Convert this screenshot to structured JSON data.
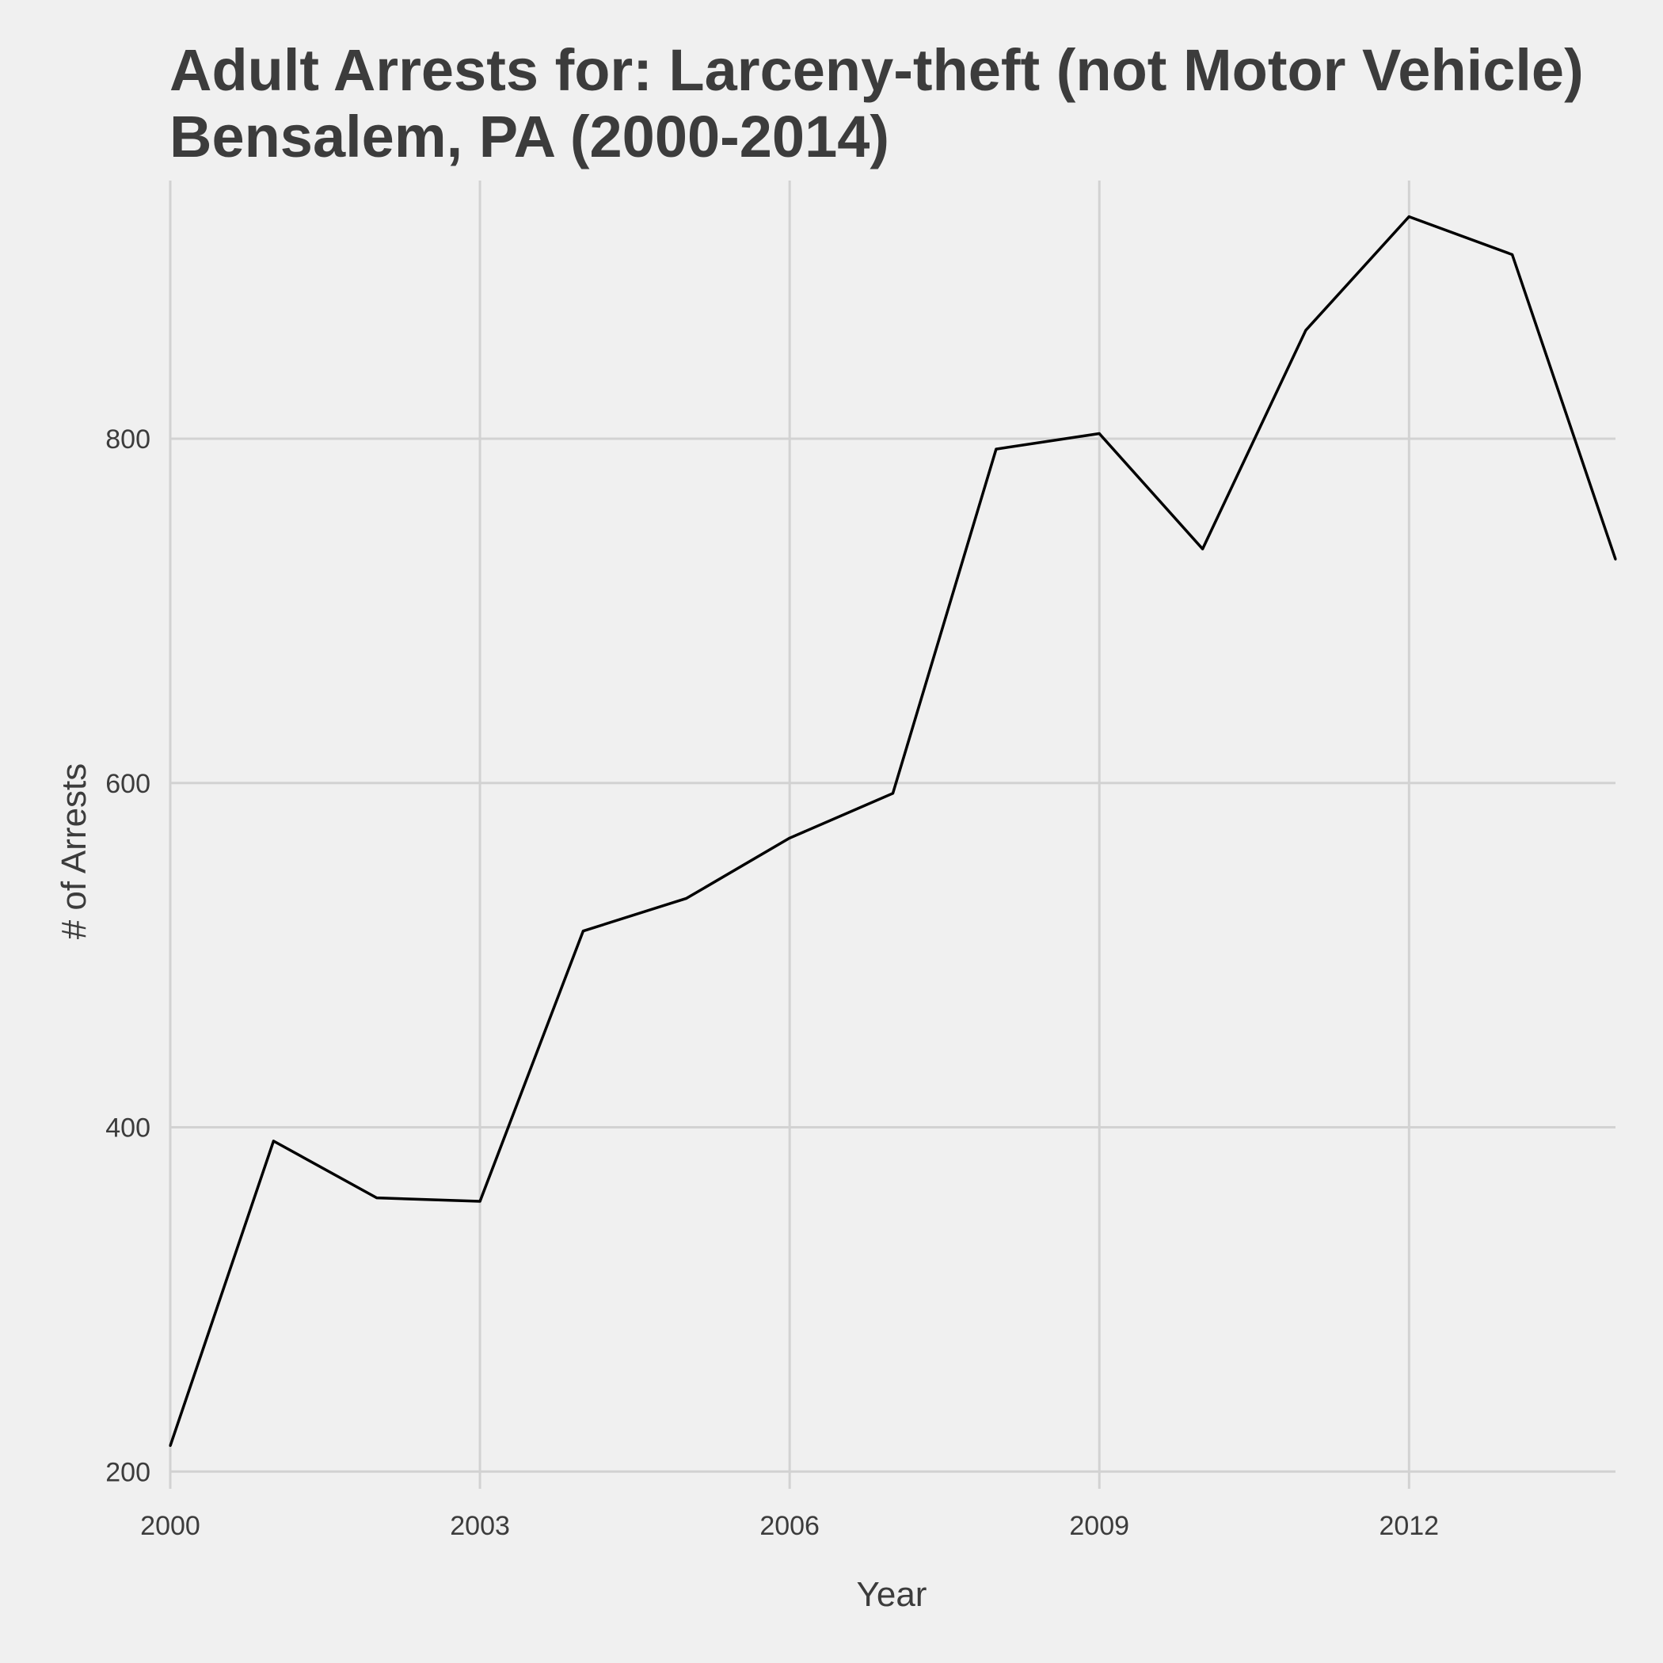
{
  "chart_data": {
    "type": "line",
    "title": "Adult Arrests for: Larceny-theft (not Motor Vehicle)",
    "subtitle": "Bensalem, PA (2000-2014)",
    "xlabel": "Year",
    "ylabel": "# of Arrests",
    "xlim": [
      2000,
      2014
    ],
    "ylim": [
      190,
      950
    ],
    "x_ticks": [
      2000,
      2003,
      2006,
      2009,
      2012
    ],
    "x_tick_labels": [
      "2000",
      "2003",
      "2006",
      "2009",
      "2012"
    ],
    "y_ticks": [
      200,
      400,
      600,
      800
    ],
    "y_tick_labels": [
      "200",
      "400",
      "600",
      "800"
    ],
    "grid": true,
    "legend": "none",
    "colors": {
      "background": "#f0f0f0",
      "grid": "#d2d2d2",
      "line": "#000000",
      "text": "#3c3c3c"
    },
    "series": [
      {
        "x": [
          2000,
          2001,
          2002,
          2003,
          2004,
          2005,
          2006,
          2007,
          2008,
          2009,
          2010,
          2011,
          2012,
          2013,
          2014
        ],
        "values": [
          215,
          392,
          359,
          357,
          514,
          533,
          568,
          594,
          794,
          803,
          736,
          863,
          929,
          907,
          730
        ]
      }
    ]
  }
}
